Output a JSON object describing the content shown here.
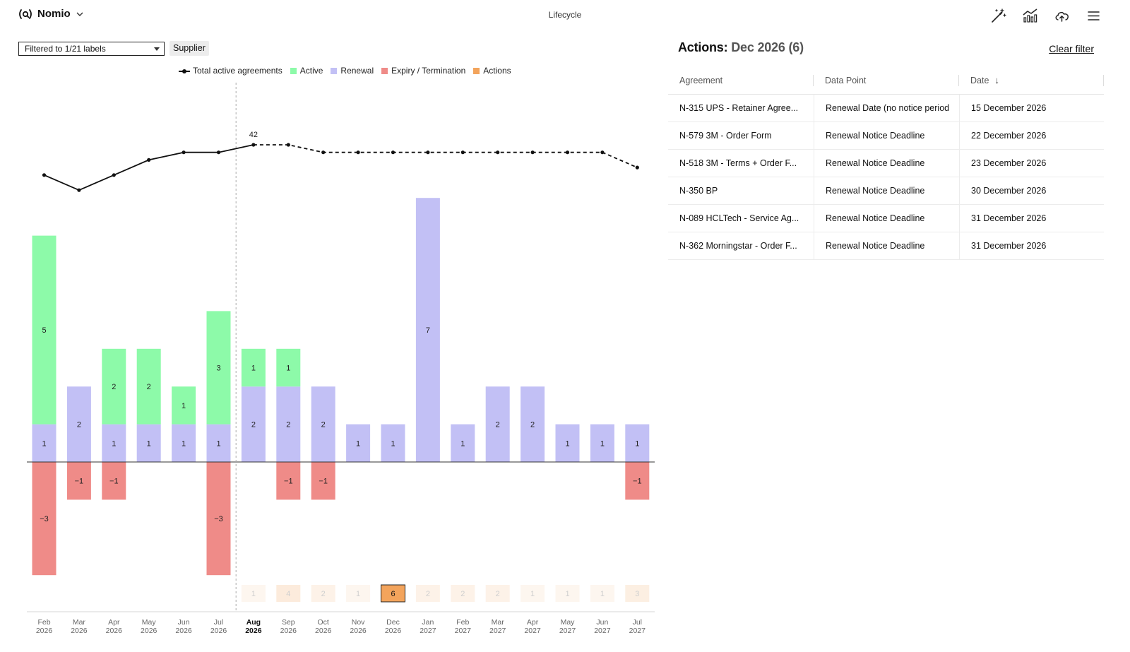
{
  "app": {
    "brand": "Nomio",
    "page_title": "Lifecycle"
  },
  "toolbar": {
    "icons": [
      "magic-wand-icon",
      "chart-icon",
      "cloud-upload-icon",
      "menu-icon"
    ]
  },
  "filters": {
    "label_filter": "Filtered to 1/21 labels",
    "chip": "Supplier"
  },
  "legend": {
    "total": "Total active agreements",
    "active": "Active",
    "renewal": "Renewal",
    "expiry": "Expiry / Termination",
    "actions": "Actions"
  },
  "colors": {
    "active": "#8dfaa9",
    "renewal": "#c2c0f5",
    "expiry": "#ef8b88",
    "actions": "#f3a45c",
    "actions_faint": "#fbe8d6",
    "line": "#111111"
  },
  "chart_data": {
    "type": "bar",
    "title": "",
    "current_month_index": 6,
    "months": [
      "Feb",
      "Mar",
      "Apr",
      "May",
      "Jun",
      "Jul",
      "Aug",
      "Sep",
      "Oct",
      "Nov",
      "Dec",
      "Jan",
      "Feb",
      "Mar",
      "Apr",
      "May",
      "Jun",
      "Jul"
    ],
    "years": [
      "2026",
      "2026",
      "2026",
      "2026",
      "2026",
      "2026",
      "2026",
      "2026",
      "2026",
      "2026",
      "2026",
      "2027",
      "2027",
      "2027",
      "2027",
      "2027",
      "2027",
      "2027"
    ],
    "series": [
      {
        "name": "Active",
        "values": [
          5,
          0,
          2,
          2,
          1,
          3,
          1,
          1,
          0,
          0,
          0,
          0,
          0,
          0,
          0,
          0,
          0,
          0
        ]
      },
      {
        "name": "Renewal",
        "values": [
          1,
          2,
          1,
          1,
          1,
          1,
          2,
          2,
          2,
          1,
          1,
          7,
          1,
          2,
          2,
          1,
          1,
          1
        ]
      },
      {
        "name": "Expiry / Termination",
        "values": [
          -3,
          -1,
          -1,
          0,
          0,
          -3,
          0,
          -1,
          -1,
          0,
          0,
          0,
          0,
          0,
          0,
          0,
          0,
          -1
        ]
      },
      {
        "name": "Actions",
        "values": [
          null,
          null,
          null,
          null,
          null,
          null,
          1,
          4,
          2,
          1,
          6,
          2,
          2,
          2,
          1,
          1,
          1,
          3
        ]
      }
    ],
    "total_active": {
      "name": "Total active agreements",
      "values": [
        38,
        36,
        38,
        40,
        41,
        41,
        42,
        42,
        41,
        41,
        41,
        41,
        41,
        41,
        41,
        41,
        41,
        39
      ],
      "labeled_index": 6,
      "label": "42"
    },
    "selected_action_index": 10,
    "ylim": [
      -3,
      7
    ]
  },
  "panel": {
    "title_prefix": "Actions:",
    "title_detail": "Dec 2026 (6)",
    "clear_filter": "Clear filter",
    "columns": [
      "Agreement",
      "Data Point",
      "Date"
    ],
    "rows": [
      {
        "agreement": "N-315 UPS - Retainer Agree...",
        "data_point": "Renewal Date (no notice period",
        "date": "15 December 2026"
      },
      {
        "agreement": "N-579 3M - Order Form",
        "data_point": "Renewal Notice Deadline",
        "date": "22 December 2026"
      },
      {
        "agreement": "N-518 3M - Terms + Order F...",
        "data_point": "Renewal Notice Deadline",
        "date": "23 December 2026"
      },
      {
        "agreement": "N-350 BP",
        "data_point": "Renewal Notice Deadline",
        "date": "30 December 2026"
      },
      {
        "agreement": "N-089 HCLTech - Service Ag...",
        "data_point": "Renewal Notice Deadline",
        "date": "31 December 2026"
      },
      {
        "agreement": "N-362 Morningstar - Order F...",
        "data_point": "Renewal Notice Deadline",
        "date": "31 December 2026"
      }
    ]
  }
}
